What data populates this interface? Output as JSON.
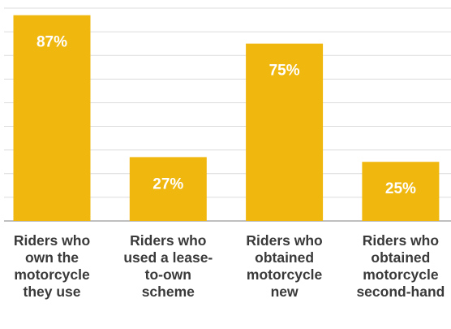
{
  "chart_data": {
    "type": "bar",
    "categories": [
      "Riders who own the motorcycle they use",
      "Riders who used a lease-to-own scheme",
      "Riders who obtained motorcycle new",
      "Riders who obtained motorcycle second-hand"
    ],
    "values": [
      87,
      27,
      75,
      25
    ],
    "value_labels": [
      "87%",
      "27%",
      "75%",
      "25%"
    ],
    "color": "#f0b70f",
    "ylim": [
      0,
      90
    ],
    "yticks": [
      0,
      10,
      20,
      30,
      40,
      50,
      60,
      70,
      80,
      90
    ],
    "grid": true
  }
}
